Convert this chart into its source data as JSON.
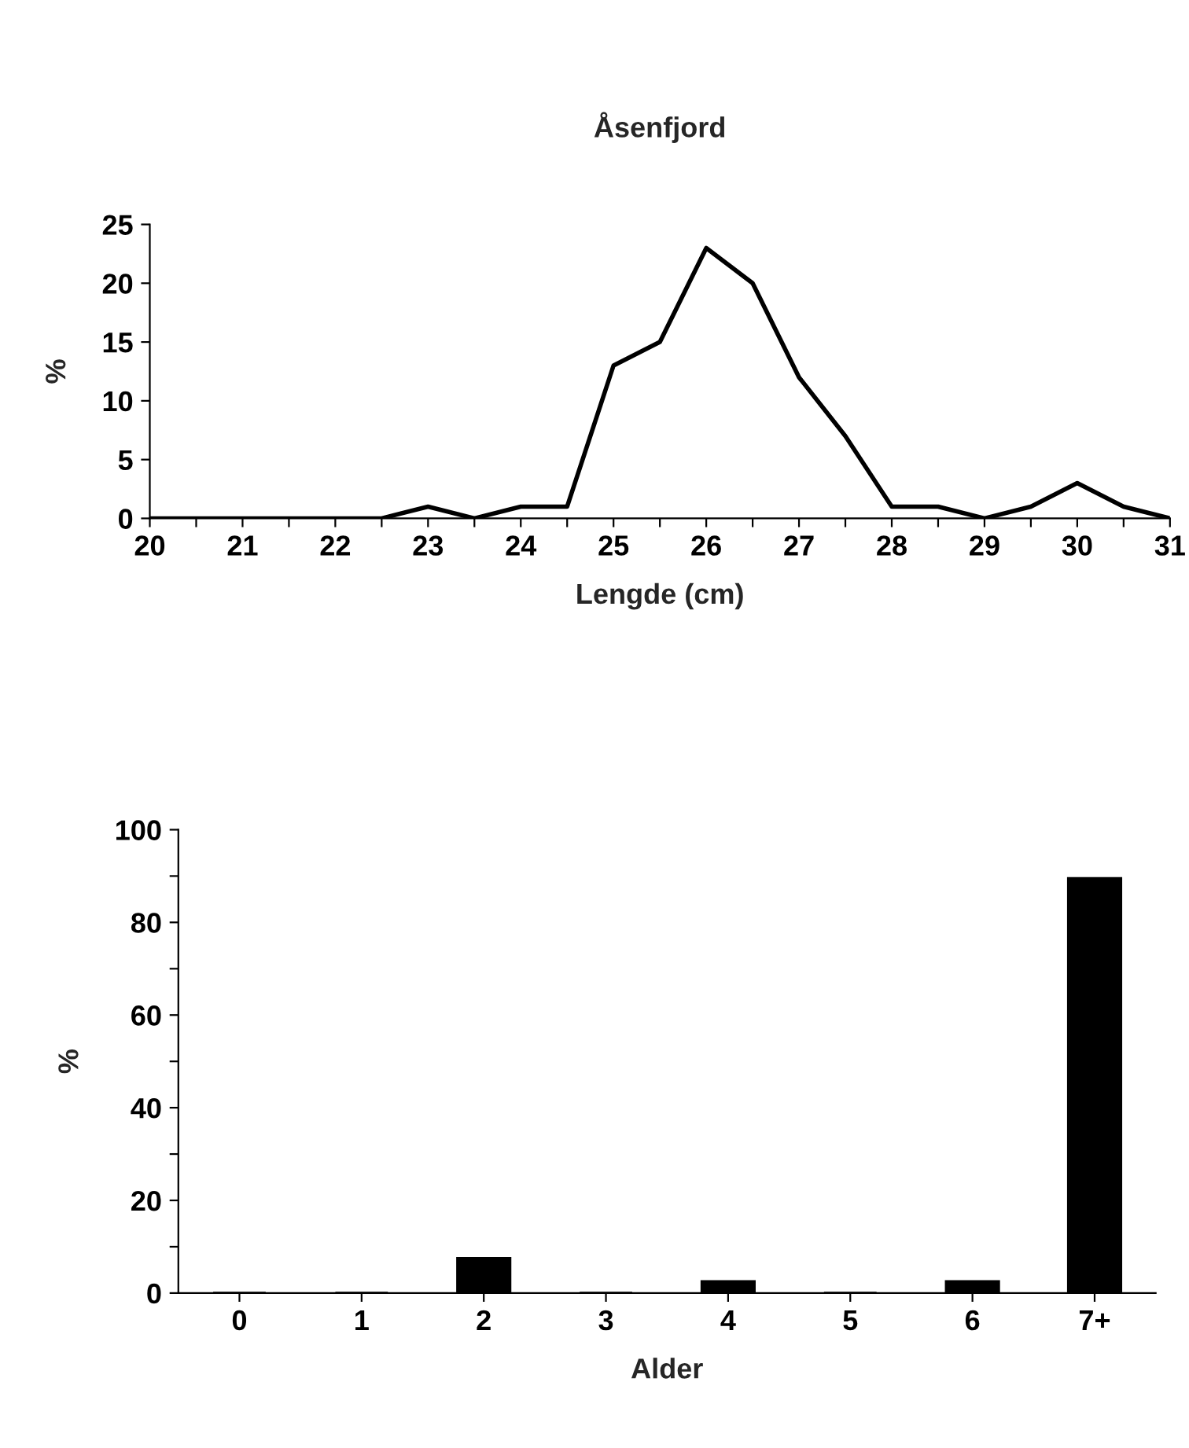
{
  "chart_data": [
    {
      "type": "line",
      "title": "Åsenfjord",
      "xlabel": "Lengde (cm)",
      "ylabel": "%",
      "x": [
        20,
        20.5,
        21,
        21.5,
        22,
        22.5,
        23,
        23.5,
        24,
        24.5,
        25,
        25.5,
        26,
        26.5,
        27,
        27.5,
        28,
        28.5,
        29,
        29.5,
        30,
        30.5,
        31
      ],
      "series": [
        {
          "color": "#000000",
          "values": [
            0,
            0,
            0,
            0,
            0,
            0,
            1,
            0,
            1,
            1,
            13,
            15,
            23,
            20,
            12,
            7,
            1,
            1,
            0,
            1,
            3,
            1,
            0
          ]
        }
      ],
      "xlim": [
        20,
        31
      ],
      "xticks": [
        20,
        {
          "value": 20.5,
          "label": null
        },
        21,
        {
          "value": 21.5,
          "label": null
        },
        22,
        {
          "value": 22.5,
          "label": null
        },
        23,
        {
          "value": 23.5,
          "label": null
        },
        24,
        {
          "value": 24.5,
          "label": null
        },
        25,
        {
          "value": 25.5,
          "label": null
        },
        26,
        {
          "value": 26.5,
          "label": null
        },
        27,
        {
          "value": 27.5,
          "label": null
        },
        28,
        {
          "value": 28.5,
          "label": null
        },
        29,
        {
          "value": 29.5,
          "label": null
        },
        30,
        {
          "value": 30.5,
          "label": null
        },
        31
      ],
      "ylim": [
        0,
        25
      ],
      "yticks": [
        0,
        5,
        10,
        15,
        20,
        25
      ],
      "grid": false,
      "legend": false,
      "marker": "none",
      "line_style": "solid"
    },
    {
      "type": "bar",
      "xlabel": "Alder",
      "ylabel": "%",
      "categories": [
        "0",
        "1",
        "2",
        "3",
        "4",
        "5",
        "6",
        "7+"
      ],
      "series": [
        {
          "color": "#000000",
          "values": [
            0,
            0,
            7.5,
            0,
            2.5,
            0,
            2.5,
            89.5
          ]
        }
      ],
      "ylim": [
        0,
        100
      ],
      "yticks": [
        0,
        {
          "value": 10,
          "label": null
        },
        20,
        {
          "value": 30,
          "label": null
        },
        40,
        {
          "value": 50,
          "label": null
        },
        60,
        {
          "value": 70,
          "label": null
        },
        80,
        {
          "value": 90,
          "label": null
        },
        100
      ],
      "grid": false,
      "legend": false
    }
  ]
}
